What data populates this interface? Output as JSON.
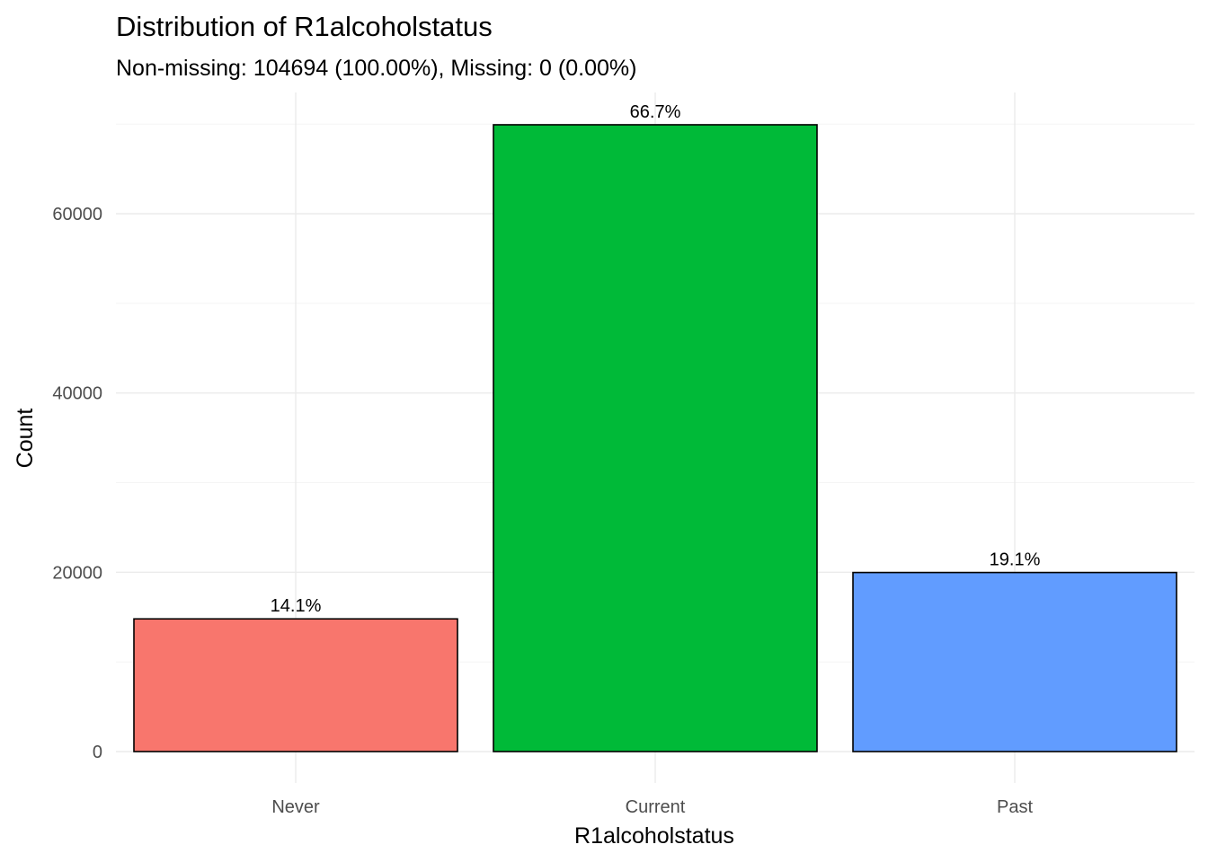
{
  "chart_data": {
    "type": "bar",
    "title": "Distribution of R1alcoholstatus",
    "subtitle": "Non-missing: 104694 (100.00%), Missing: 0 (0.00%)",
    "xlabel": "R1alcoholstatus",
    "ylabel": "Count",
    "categories": [
      "Never",
      "Current",
      "Past"
    ],
    "values": [
      14800,
      69920,
      19974
    ],
    "labels": [
      "14.1%",
      "66.7%",
      "19.1%"
    ],
    "colors": [
      "#F8766D",
      "#00BA38",
      "#619CFF"
    ],
    "ylim": [
      0,
      73400
    ],
    "yticks": [
      0,
      20000,
      40000,
      60000
    ],
    "ytick_labels": [
      "0",
      "20000",
      "40000",
      "60000"
    ],
    "grid": true,
    "legend": "none"
  }
}
